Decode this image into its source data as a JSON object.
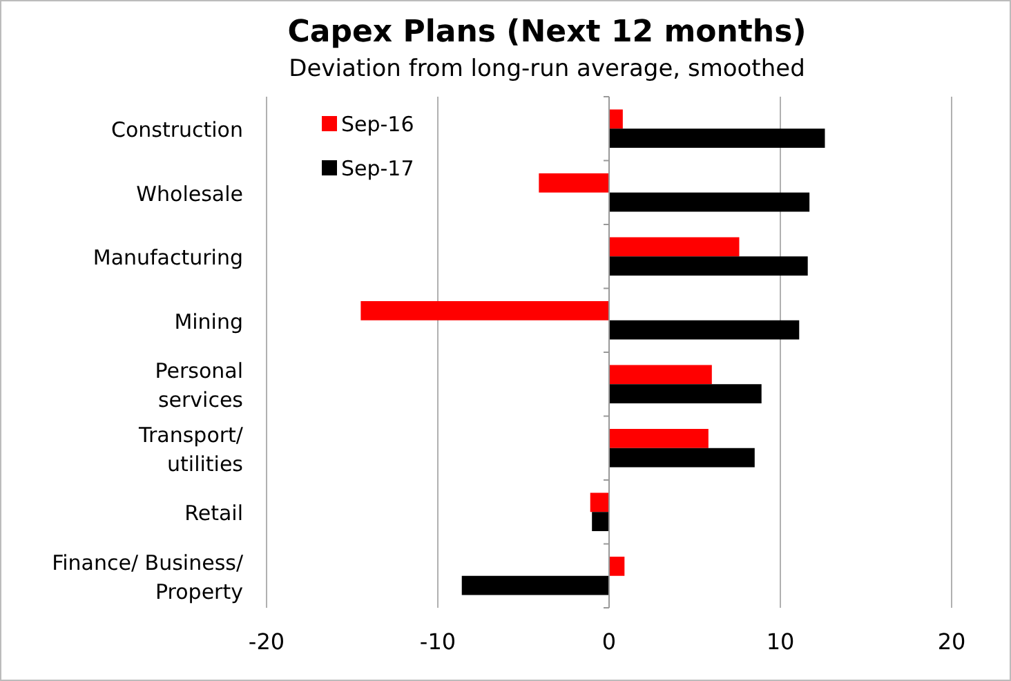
{
  "chart_data": {
    "type": "bar",
    "orientation": "horizontal",
    "title": "Capex Plans (Next 12 months)",
    "subtitle": "Deviation from long-run average, smoothed",
    "categories": [
      "Construction",
      "Wholesale",
      "Manufacturing",
      "Mining",
      "Personal\nservices",
      "Transport/\nutilities",
      "Retail",
      "Finance/ Business/\nProperty"
    ],
    "series": [
      {
        "name": "Sep-16",
        "color": "#ff0000",
        "values": [
          0.8,
          -4.1,
          7.6,
          -14.5,
          6.0,
          5.8,
          -1.1,
          0.9
        ]
      },
      {
        "name": "Sep-17",
        "color": "#000000",
        "values": [
          12.6,
          11.7,
          11.6,
          11.1,
          8.9,
          8.5,
          -1.0,
          -8.6
        ]
      }
    ],
    "xlim": [
      -20,
      20
    ],
    "xticks": [
      -20,
      -10,
      0,
      10,
      20
    ],
    "grid": "x",
    "legend": "top left"
  }
}
